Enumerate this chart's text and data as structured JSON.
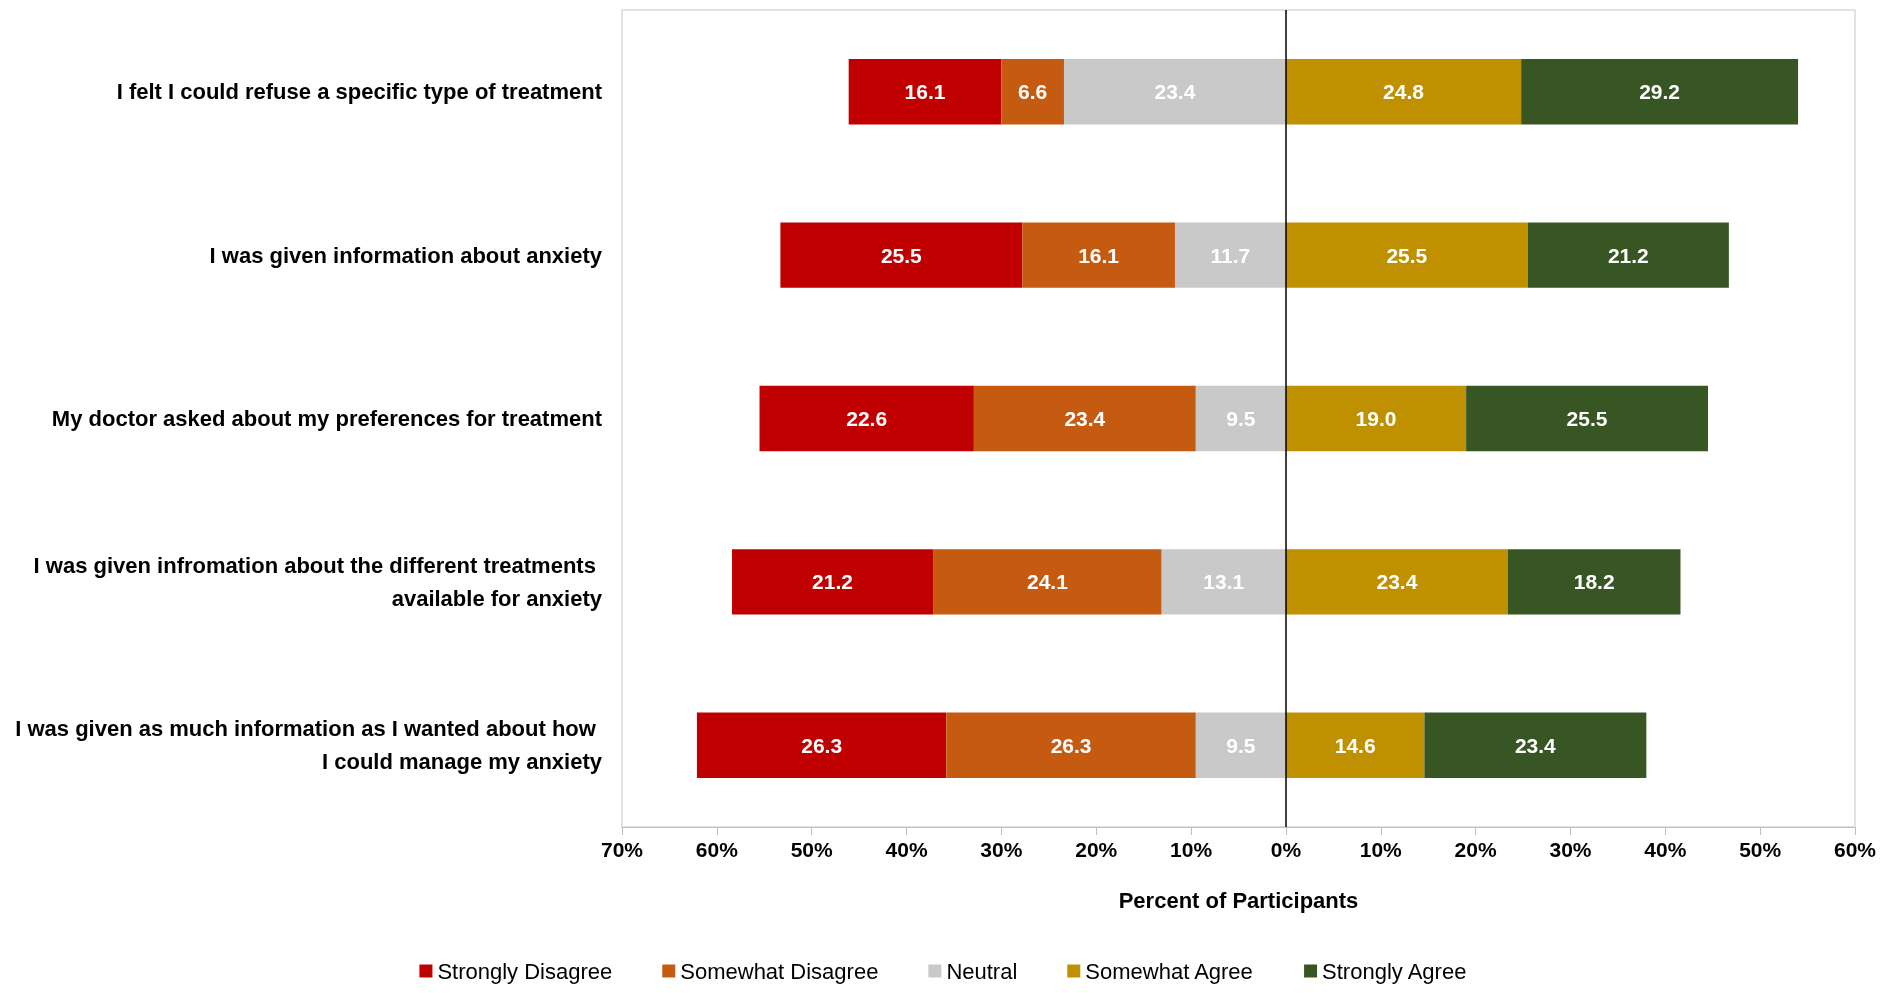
{
  "chart_data": {
    "type": "bar",
    "orientation": "horizontal",
    "xlabel": "Percent of Participants",
    "categories": [
      "I felt I could refuse a specific type of treatment",
      "I was given information about anxiety",
      "My doctor asked about my preferences for treatment",
      "I was given infromation about the different treatments available for anxiety",
      "I was given as much information as I wanted about how I could manage my anxiety"
    ],
    "series": [
      {
        "name": "Strongly Disagree",
        "color": "#c00000",
        "values": [
          16.1,
          25.5,
          22.6,
          21.2,
          26.3
        ],
        "base": [
          -46.1,
          -53.3,
          -55.5,
          -58.4,
          -62.1
        ],
        "value_labels": [
          "16.1",
          "25.5",
          "22.6",
          "21.2",
          "26.3"
        ]
      },
      {
        "name": "Somewhat Disagree",
        "color": "#c55a11",
        "values": [
          6.6,
          16.1,
          23.4,
          24.1,
          26.3
        ],
        "base": [
          -30.0,
          -27.8,
          -32.9,
          -37.2,
          -35.8
        ],
        "value_labels": [
          "6.6",
          "16.1",
          "23.4",
          "24.1",
          "26.3"
        ]
      },
      {
        "name": "Neutral",
        "color": "#c9c9c9",
        "values": [
          23.4,
          11.7,
          9.5,
          13.1,
          9.5
        ],
        "base": [
          -23.4,
          -11.7,
          -9.5,
          -13.1,
          -9.5
        ],
        "value_labels": [
          "23.4",
          "11.7",
          "9.5",
          "13.1",
          "9.5"
        ]
      },
      {
        "name": "Somewhat Agree",
        "color": "#bf9000",
        "values": [
          24.8,
          25.5,
          19.0,
          23.4,
          14.6
        ],
        "base": [
          0,
          0,
          0,
          0,
          0
        ],
        "value_labels": [
          "24.8",
          "25.5",
          "19.0",
          "23.4",
          "14.6"
        ]
      },
      {
        "name": "Strongly Agree",
        "color": "#375623",
        "values": [
          29.2,
          21.2,
          25.5,
          18.2,
          23.4
        ],
        "base": [
          24.8,
          25.5,
          19.0,
          23.4,
          14.6
        ],
        "value_labels": [
          "29.2",
          "21.2",
          "25.5",
          "18.2",
          "23.4"
        ]
      }
    ],
    "xlim": [
      -70,
      60
    ],
    "xticks": [
      {
        "value": -70,
        "label": "70%"
      },
      {
        "value": -60,
        "label": "60%"
      },
      {
        "value": -50,
        "label": "50%"
      },
      {
        "value": -40,
        "label": "40%"
      },
      {
        "value": -30,
        "label": "30%"
      },
      {
        "value": -20,
        "label": "20%"
      },
      {
        "value": -10,
        "label": "10%"
      },
      {
        "value": 0,
        "label": "0%"
      },
      {
        "value": 10,
        "label": "10%"
      },
      {
        "value": 20,
        "label": "20%"
      },
      {
        "value": 30,
        "label": "30%"
      },
      {
        "value": 40,
        "label": "40%"
      },
      {
        "value": 50,
        "label": "50%"
      },
      {
        "value": 60,
        "label": "60%"
      }
    ],
    "ref_lines": [
      {
        "axis": "x",
        "value": 0,
        "color": "#000000"
      }
    ],
    "grid": false,
    "legend": "bottom"
  }
}
